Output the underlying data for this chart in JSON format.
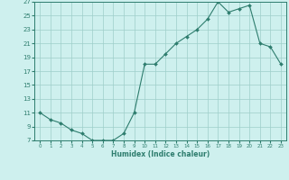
{
  "x": [
    0,
    1,
    2,
    3,
    4,
    5,
    6,
    7,
    8,
    9,
    10,
    11,
    12,
    13,
    14,
    15,
    16,
    17,
    18,
    19,
    20,
    21,
    22,
    23
  ],
  "y": [
    11,
    10,
    9.5,
    8.5,
    8,
    7,
    7,
    7,
    8,
    11,
    18,
    18,
    19.5,
    21,
    22,
    23,
    24.5,
    27,
    25.5,
    26,
    26.5,
    21,
    20.5,
    18
  ],
  "line_color": "#2e7d6e",
  "marker_color": "#2e7d6e",
  "bg_color": "#cef0ee",
  "grid_color": "#9ececa",
  "xlabel": "Humidex (Indice chaleur)",
  "ylim": [
    7,
    27
  ],
  "xlim": [
    -0.5,
    23.5
  ],
  "yticks": [
    7,
    9,
    11,
    13,
    15,
    17,
    19,
    21,
    23,
    25,
    27
  ],
  "xticks": [
    0,
    1,
    2,
    3,
    4,
    5,
    6,
    7,
    8,
    9,
    10,
    11,
    12,
    13,
    14,
    15,
    16,
    17,
    18,
    19,
    20,
    21,
    22,
    23
  ]
}
